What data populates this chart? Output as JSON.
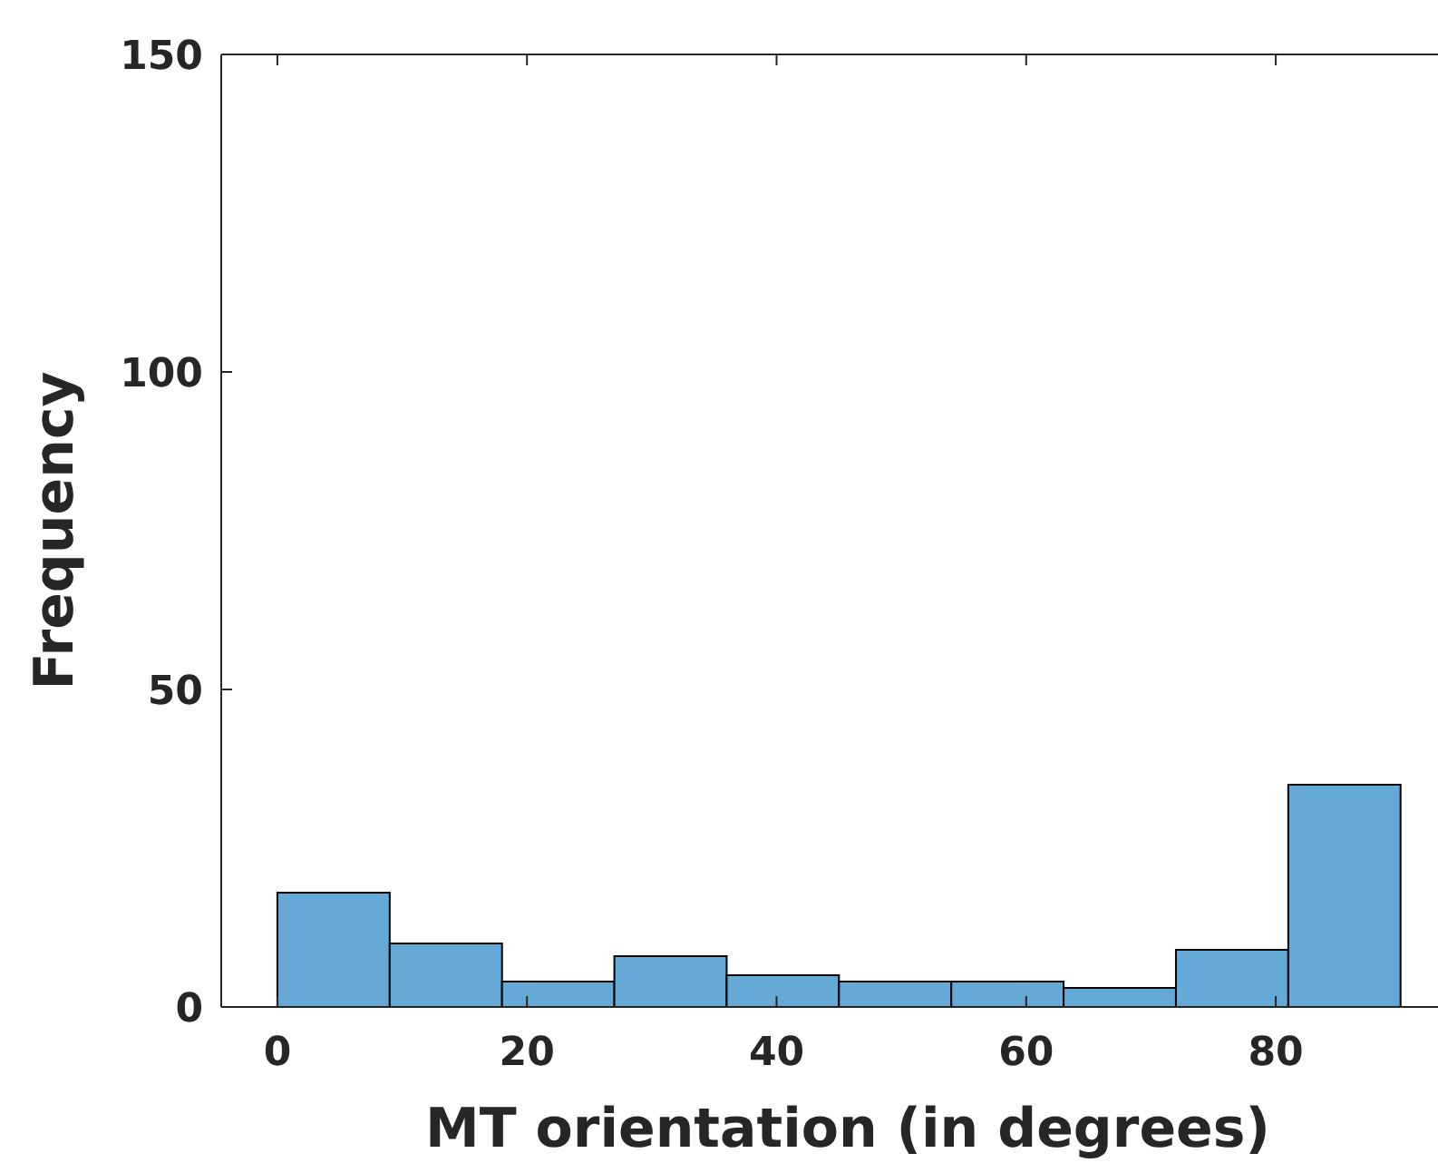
{
  "chart_data": {
    "type": "histogram",
    "xlabel": "MT orientation (in degrees)",
    "ylabel": "Frequency",
    "bins": [
      0,
      9,
      18,
      27,
      36,
      45,
      54,
      63,
      72,
      81,
      90
    ],
    "values": [
      18,
      10,
      4,
      8,
      5,
      4,
      4,
      3,
      9,
      35
    ],
    "color": "#65a9d7",
    "xlim": [
      -4.5,
      93
    ],
    "xticks": [
      0,
      20,
      40,
      60,
      80
    ],
    "ylim": [
      0,
      150
    ],
    "yticks": [
      0,
      50,
      100,
      150
    ],
    "grid": false
  }
}
